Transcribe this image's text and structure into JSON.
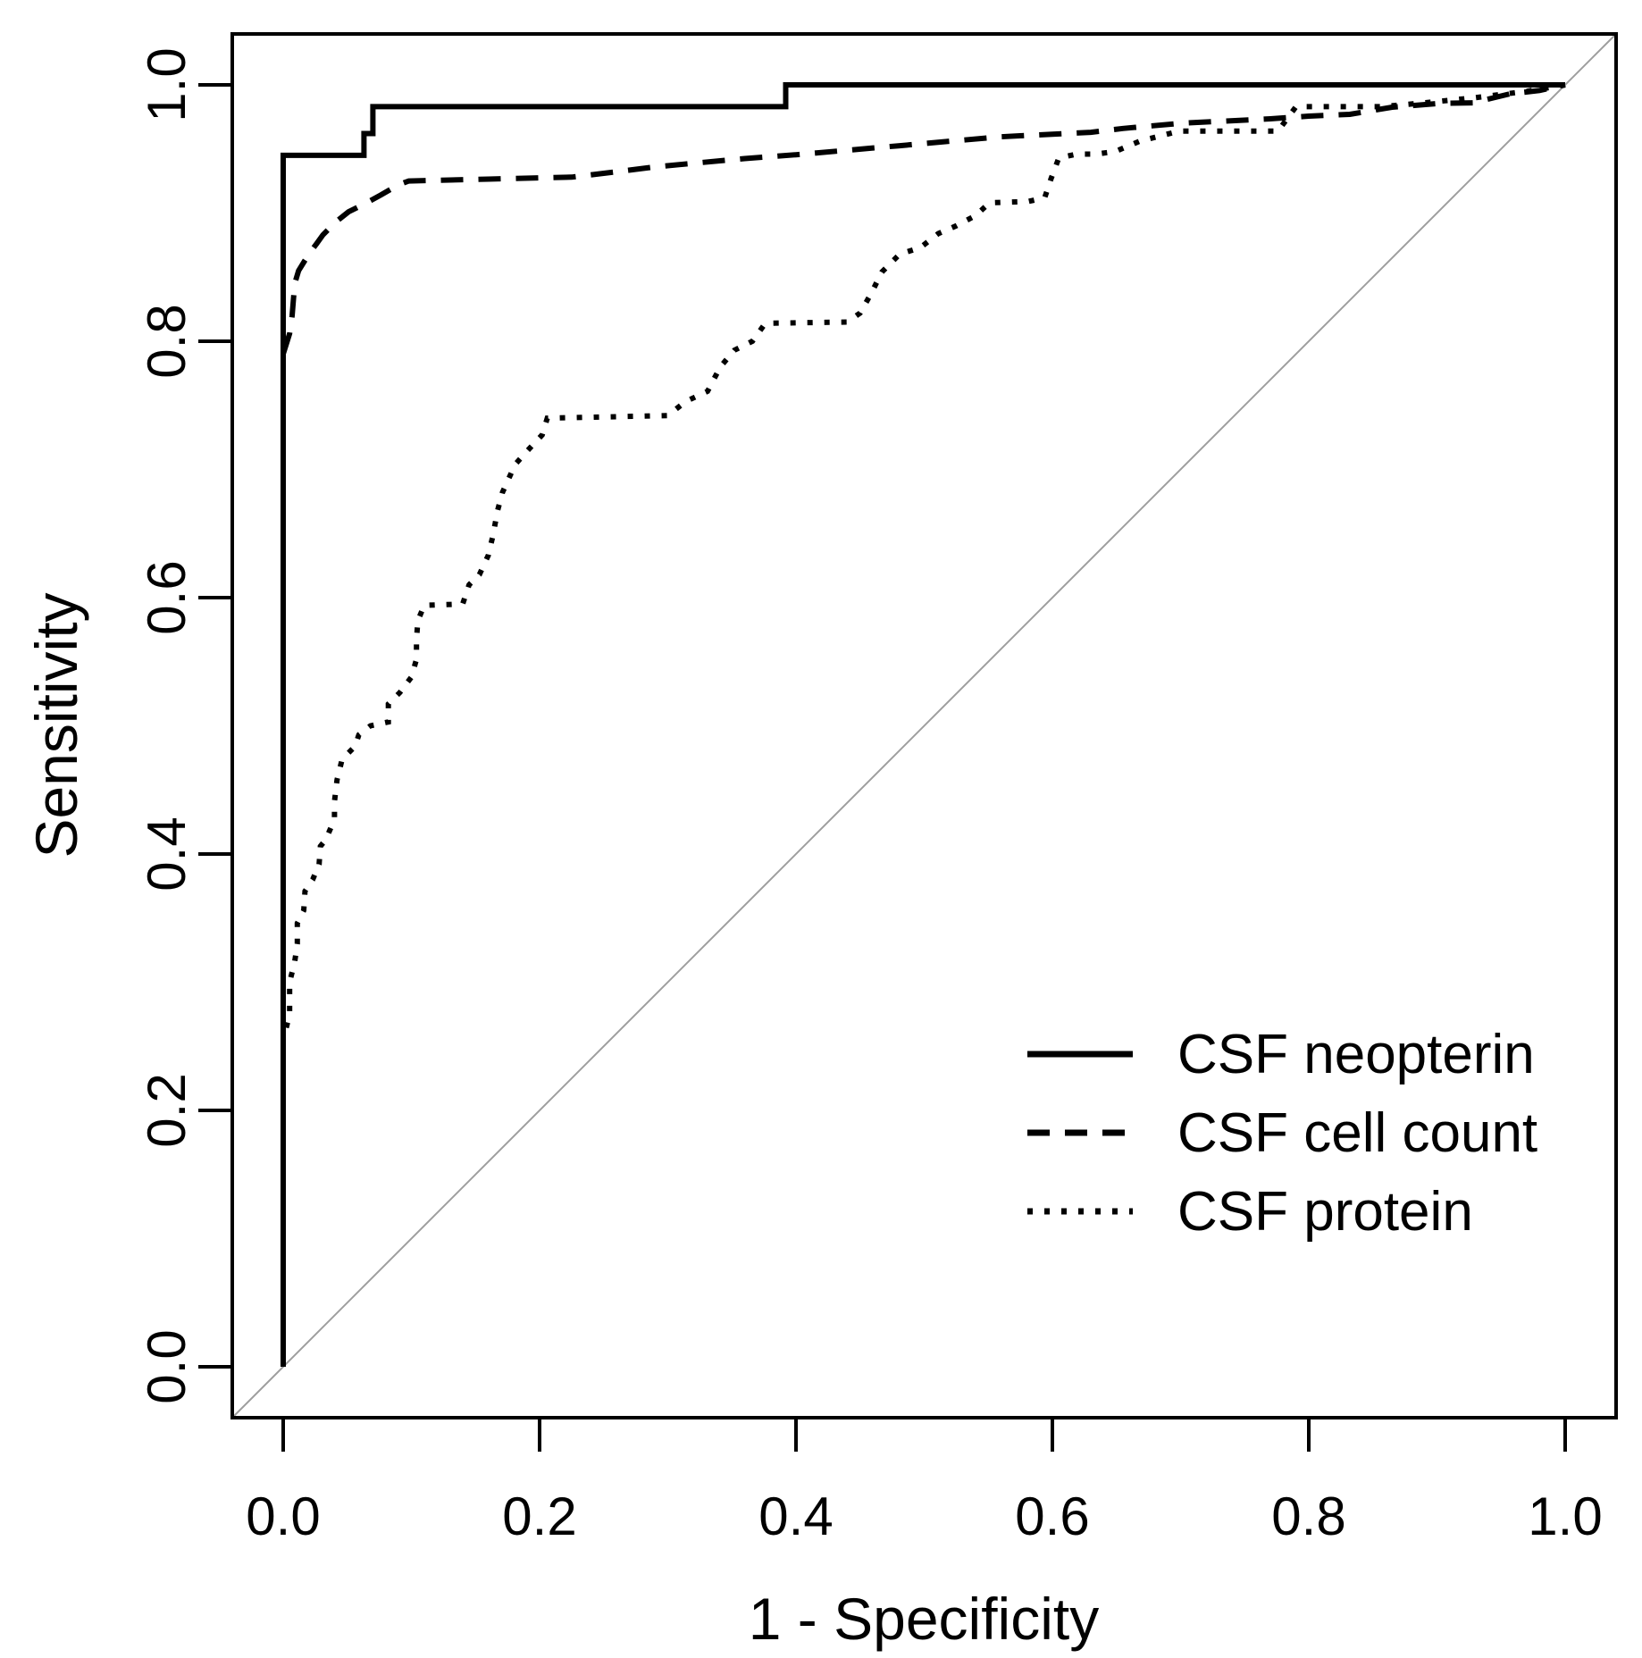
{
  "figure": {
    "background": "#ffffff",
    "line_color": "#000000",
    "reference_line_color": "#9e9e9e"
  },
  "chart_data": {
    "type": "line",
    "title": "",
    "xlabel": "1 - Specificity",
    "ylabel": "Sensitivity",
    "xlim": [
      0,
      1
    ],
    "ylim": [
      0,
      1
    ],
    "grid": false,
    "legend_position": "bottom-right",
    "reference_line": {
      "type": "diagonal y=x",
      "color": "#9e9e9e"
    },
    "x_ticks": [
      {
        "label": "0.0",
        "value": 0.0
      },
      {
        "label": "0.2",
        "value": 0.2
      },
      {
        "label": "0.4",
        "value": 0.4
      },
      {
        "label": "0.6",
        "value": 0.6
      },
      {
        "label": "0.8",
        "value": 0.8
      },
      {
        "label": "1.0",
        "value": 1.0
      }
    ],
    "y_ticks": [
      {
        "label": "0.0",
        "value": 0.0
      },
      {
        "label": "0.2",
        "value": 0.2
      },
      {
        "label": "0.4",
        "value": 0.4
      },
      {
        "label": "0.6",
        "value": 0.6
      },
      {
        "label": "0.8",
        "value": 0.8
      },
      {
        "label": "1.0",
        "value": 1.0
      }
    ],
    "series": [
      {
        "name": "CSF neopterin",
        "linestyle": "solid",
        "color": "#000000",
        "points": [
          [
            0,
            0
          ],
          [
            0,
            0.945
          ],
          [
            0.063,
            0.945
          ],
          [
            0.063,
            0.962
          ],
          [
            0.07,
            0.962
          ],
          [
            0.07,
            0.983
          ],
          [
            0.392,
            0.983
          ],
          [
            0.392,
            1
          ],
          [
            1,
            1
          ]
        ]
      },
      {
        "name": "CSF cell count",
        "linestyle": "dashed",
        "color": "#000000",
        "points": [
          [
            0,
            0
          ],
          [
            0,
            0.79
          ],
          [
            0.005,
            0.806
          ],
          [
            0.007,
            0.82
          ],
          [
            0.009,
            0.845
          ],
          [
            0.012,
            0.855
          ],
          [
            0.02,
            0.868
          ],
          [
            0.026,
            0.876
          ],
          [
            0.031,
            0.883
          ],
          [
            0.041,
            0.893
          ],
          [
            0.051,
            0.901
          ],
          [
            0.065,
            0.908
          ],
          [
            0.076,
            0.914
          ],
          [
            0.09,
            0.922
          ],
          [
            0.098,
            0.925
          ],
          [
            0.16,
            0.9265
          ],
          [
            0.225,
            0.928
          ],
          [
            0.258,
            0.932
          ],
          [
            0.29,
            0.936
          ],
          [
            0.322,
            0.939
          ],
          [
            0.36,
            0.9425
          ],
          [
            0.4,
            0.9455
          ],
          [
            0.44,
            0.949
          ],
          [
            0.48,
            0.9525
          ],
          [
            0.52,
            0.956
          ],
          [
            0.56,
            0.9595
          ],
          [
            0.6,
            0.9615
          ],
          [
            0.63,
            0.963
          ],
          [
            0.655,
            0.966
          ],
          [
            0.7,
            0.97
          ],
          [
            0.739,
            0.972
          ],
          [
            0.77,
            0.9735
          ],
          [
            0.8,
            0.9756
          ],
          [
            0.832,
            0.977
          ],
          [
            0.865,
            0.9826
          ],
          [
            0.902,
            0.9856
          ],
          [
            0.928,
            0.986
          ],
          [
            0.957,
            0.993
          ],
          [
            0.98,
            0.9956
          ],
          [
            1,
            1
          ]
        ]
      },
      {
        "name": "CSF protein",
        "linestyle": "dotted",
        "color": "#000000",
        "points": [
          [
            0,
            0
          ],
          [
            0,
            0.255
          ],
          [
            0.002,
            0.263
          ],
          [
            0.005,
            0.275
          ],
          [
            0.005,
            0.3
          ],
          [
            0.009,
            0.316
          ],
          [
            0.011,
            0.33
          ],
          [
            0.011,
            0.346
          ],
          [
            0.016,
            0.356
          ],
          [
            0.017,
            0.371
          ],
          [
            0.023,
            0.38
          ],
          [
            0.028,
            0.392
          ],
          [
            0.029,
            0.406
          ],
          [
            0.033,
            0.411
          ],
          [
            0.04,
            0.427
          ],
          [
            0.04,
            0.441
          ],
          [
            0.042,
            0.458
          ],
          [
            0.046,
            0.474
          ],
          [
            0.056,
            0.484
          ],
          [
            0.059,
            0.493
          ],
          [
            0.068,
            0.5
          ],
          [
            0.082,
            0.503
          ],
          [
            0.082,
            0.517
          ],
          [
            0.091,
            0.526
          ],
          [
            0.1,
            0.538
          ],
          [
            0.104,
            0.552
          ],
          [
            0.104,
            0.567
          ],
          [
            0.105,
            0.582
          ],
          [
            0.11,
            0.594
          ],
          [
            0.14,
            0.595
          ],
          [
            0.145,
            0.61
          ],
          [
            0.153,
            0.618
          ],
          [
            0.16,
            0.633
          ],
          [
            0.164,
            0.65
          ],
          [
            0.167,
            0.667
          ],
          [
            0.171,
            0.682
          ],
          [
            0.181,
            0.704
          ],
          [
            0.19,
            0.714
          ],
          [
            0.202,
            0.727
          ],
          [
            0.206,
            0.74
          ],
          [
            0.3,
            0.742
          ],
          [
            0.314,
            0.753
          ],
          [
            0.331,
            0.761
          ],
          [
            0.341,
            0.78
          ],
          [
            0.352,
            0.793
          ],
          [
            0.366,
            0.8
          ],
          [
            0.376,
            0.814
          ],
          [
            0.44,
            0.815
          ],
          [
            0.45,
            0.822
          ],
          [
            0.459,
            0.838
          ],
          [
            0.467,
            0.854
          ],
          [
            0.481,
            0.868
          ],
          [
            0.497,
            0.873
          ],
          [
            0.511,
            0.884
          ],
          [
            0.525,
            0.89
          ],
          [
            0.54,
            0.898
          ],
          [
            0.551,
            0.908
          ],
          [
            0.581,
            0.909
          ],
          [
            0.594,
            0.912
          ],
          [
            0.599,
            0.927
          ],
          [
            0.605,
            0.943
          ],
          [
            0.619,
            0.946
          ],
          [
            0.634,
            0.946
          ],
          [
            0.649,
            0.948
          ],
          [
            0.668,
            0.956
          ],
          [
            0.699,
            0.964
          ],
          [
            0.776,
            0.964
          ],
          [
            0.79,
            0.983
          ],
          [
            0.857,
            0.983
          ],
          [
            0.89,
            0.986
          ],
          [
            0.93,
            0.99
          ],
          [
            0.97,
            0.995
          ],
          [
            1,
            1
          ]
        ]
      }
    ]
  }
}
